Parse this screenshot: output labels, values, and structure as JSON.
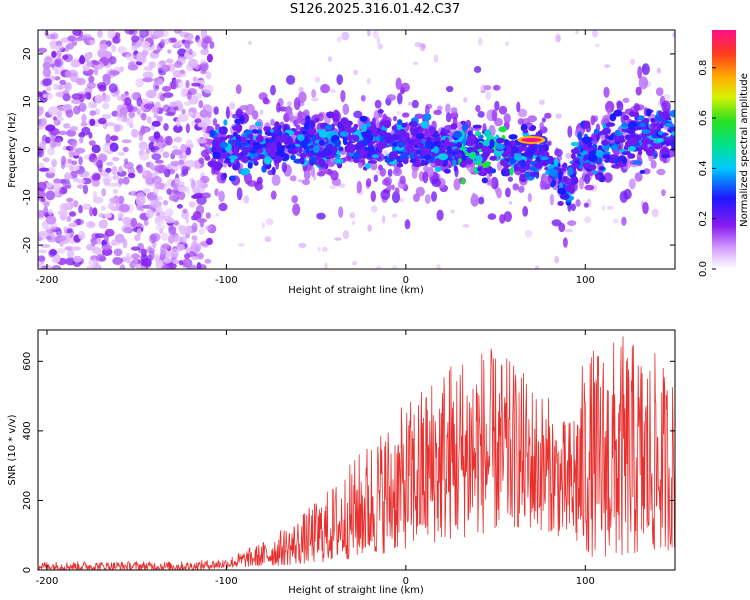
{
  "title": "S126.2025.316.01.42.C37",
  "colors": {
    "snr_line": "#e8302e",
    "spectro_base": "#8a1bf0"
  },
  "chart_data": [
    {
      "type": "heatmap",
      "xlabel": "Height of straight line (km)",
      "ylabel": "Frequency (Hz)",
      "xlim": [
        -205,
        150
      ],
      "ylim": [
        -25,
        25
      ],
      "xticks": [
        -200,
        -100,
        0,
        100
      ],
      "yticks": [
        -20,
        -10,
        0,
        10,
        20
      ],
      "colorbar": {
        "label": "Normalized spectral amplitude",
        "range": [
          0.0,
          0.95
        ],
        "ticks": [
          "0.0",
          "0.2",
          "0.4",
          "0.6",
          "0.8"
        ],
        "tick_values": [
          0.0,
          0.2,
          0.4,
          0.6,
          0.8
        ]
      },
      "noise_region_x": [
        -205,
        -108
      ],
      "signal_band_center_hz": 0,
      "peak": {
        "x_km": 70,
        "freq_hz": 2,
        "amplitude": 0.95
      }
    },
    {
      "type": "line",
      "xlabel": "Height of straight line (km)",
      "ylabel": "SNR (10 * v/v)",
      "xlim": [
        -205,
        150
      ],
      "ylim": [
        0,
        690
      ],
      "xticks": [
        -200,
        -100,
        0,
        100
      ],
      "yticks": [
        0,
        200,
        400,
        600
      ],
      "envelope": {
        "x": [
          -205,
          -120,
          -100,
          -80,
          -60,
          -40,
          -20,
          0,
          20,
          40,
          60,
          80,
          90,
          100,
          120,
          140,
          150
        ],
        "max": [
          25,
          25,
          35,
          80,
          150,
          250,
          380,
          480,
          600,
          660,
          600,
          500,
          420,
          630,
          680,
          620,
          550
        ],
        "min": [
          0,
          0,
          5,
          10,
          15,
          25,
          40,
          60,
          80,
          100,
          120,
          110,
          80,
          40,
          30,
          50,
          60
        ]
      }
    }
  ]
}
